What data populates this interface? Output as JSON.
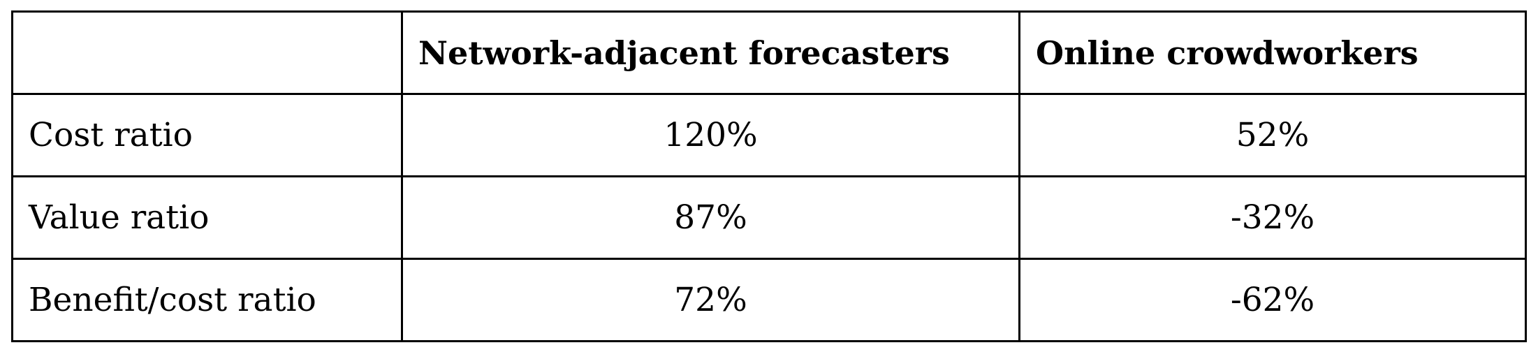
{
  "table": {
    "columns": [
      "",
      "Network-adjacent forecasters",
      "Online crowdworkers"
    ],
    "rows": [
      {
        "label": "Cost ratio",
        "values": [
          "120%",
          "52%"
        ]
      },
      {
        "label": "Value ratio",
        "values": [
          "87%",
          "-32%"
        ]
      },
      {
        "label": "Benefit/cost ratio",
        "values": [
          "72%",
          "-62%"
        ]
      }
    ]
  },
  "colors": {
    "border": "#000000",
    "background": "#ffffff",
    "text": "#000000"
  }
}
